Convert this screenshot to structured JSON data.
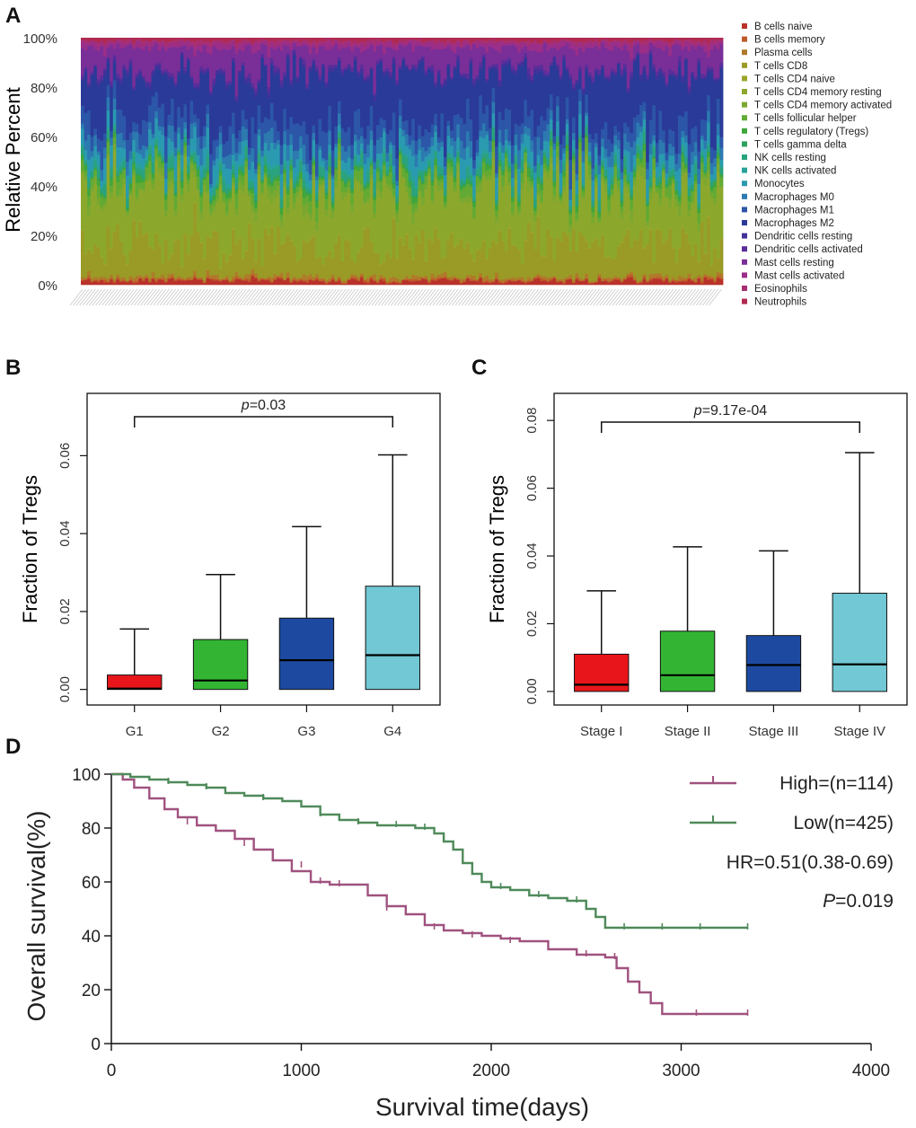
{
  "panels": {
    "a": {
      "letter": "A"
    },
    "b": {
      "letter": "B"
    },
    "c": {
      "letter": "C"
    },
    "d": {
      "letter": "D"
    }
  },
  "colors": {
    "high": "#a0527f",
    "low": "#4f8a5a",
    "g1": "#e8161b",
    "g2": "#33b533",
    "g3": "#1d4aa0",
    "g4": "#72c8d4"
  },
  "chart_data": [
    {
      "type": "bar",
      "stacked": true,
      "ylabel": "Relative Percent",
      "yticks": [
        "0%",
        "20%",
        "40%",
        "60%",
        "80%",
        "100%"
      ],
      "ylim": [
        0,
        100
      ],
      "sample_count": 200,
      "legend_position": "right",
      "series": [
        {
          "name": "B cells naive",
          "color": "#b8322a",
          "mean": 1.5
        },
        {
          "name": "B cells memory",
          "color": "#bf5a2a",
          "mean": 0.5
        },
        {
          "name": "Plasma cells",
          "color": "#b07a2a",
          "mean": 1.0
        },
        {
          "name": "T cells CD8",
          "color": "#9a9a26",
          "mean": 12.0
        },
        {
          "name": "T cells CD4 naive",
          "color": "#9aa62a",
          "mean": 0.4
        },
        {
          "name": "T cells CD4 memory resting",
          "color": "#8ca82c",
          "mean": 20.0
        },
        {
          "name": "T cells CD4 memory activated",
          "color": "#7aa830",
          "mean": 2.0
        },
        {
          "name": "T cells follicular helper",
          "color": "#62aa34",
          "mean": 3.0
        },
        {
          "name": "T cells regulatory (Tregs)",
          "color": "#3fa63c",
          "mean": 1.5
        },
        {
          "name": "T cells gamma delta",
          "color": "#2fa060",
          "mean": 0.5
        },
        {
          "name": "NK cells resting",
          "color": "#2aa27e",
          "mean": 2.5
        },
        {
          "name": "NK cells activated",
          "color": "#28a29a",
          "mean": 1.0
        },
        {
          "name": "Monocytes",
          "color": "#2a9ab0",
          "mean": 5.0
        },
        {
          "name": "Macrophages M0",
          "color": "#2c7ab0",
          "mean": 4.0
        },
        {
          "name": "Macrophages M1",
          "color": "#2c56a8",
          "mean": 7.0
        },
        {
          "name": "Macrophages M2",
          "color": "#2a3a98",
          "mean": 18.0
        },
        {
          "name": "Dendritic cells resting",
          "color": "#40329a",
          "mean": 1.0
        },
        {
          "name": "Dendritic cells activated",
          "color": "#5a2e9a",
          "mean": 1.0
        },
        {
          "name": "Mast cells resting",
          "color": "#7a2e98",
          "mean": 8.0
        },
        {
          "name": "Mast cells activated",
          "color": "#9a2e88",
          "mean": 2.0
        },
        {
          "name": "Eosinophils",
          "color": "#a82e70",
          "mean": 1.0
        },
        {
          "name": "Neutrophils",
          "color": "#b02a50",
          "mean": 1.0
        }
      ]
    },
    {
      "type": "box",
      "ylabel": "Fraction of Tregs",
      "yticks": [
        "0.00",
        "0.02",
        "0.04",
        "0.06"
      ],
      "ylim": [
        -0.004,
        0.076
      ],
      "categories": [
        "G1",
        "G2",
        "G3",
        "G4"
      ],
      "boxes": [
        {
          "label": "G1",
          "whisker_low": 0.0,
          "q1": 0.0,
          "median": 0.0002,
          "q3": 0.0037,
          "whisker_high": 0.0155,
          "color": "#e8161b"
        },
        {
          "label": "G2",
          "whisker_low": 0.0,
          "q1": 0.0,
          "median": 0.0023,
          "q3": 0.0128,
          "whisker_high": 0.0295,
          "color": "#33b533"
        },
        {
          "label": "G3",
          "whisker_low": 0.0,
          "q1": 0.0,
          "median": 0.0075,
          "q3": 0.0183,
          "whisker_high": 0.0418,
          "color": "#1d4aa0"
        },
        {
          "label": "G4",
          "whisker_low": 0.0,
          "q1": 0.0,
          "median": 0.0088,
          "q3": 0.0265,
          "whisker_high": 0.0602,
          "color": "#72c8d4"
        }
      ],
      "annotation": {
        "p_label": "p",
        "p_value": "=0.03",
        "from": "G1",
        "to": "G4",
        "y": 0.07
      }
    },
    {
      "type": "box",
      "ylabel": "Fraction of Tregs",
      "yticks": [
        "0.00",
        "0.02",
        "0.04",
        "0.06",
        "0.08"
      ],
      "ylim": [
        -0.004,
        0.088
      ],
      "categories": [
        "Stage I",
        "Stage II",
        "Stage III",
        "Stage IV"
      ],
      "boxes": [
        {
          "label": "Stage I",
          "whisker_low": 0.0,
          "q1": 0.0,
          "median": 0.002,
          "q3": 0.011,
          "whisker_high": 0.0297,
          "color": "#e8161b"
        },
        {
          "label": "Stage II",
          "whisker_low": 0.0,
          "q1": 0.0,
          "median": 0.0048,
          "q3": 0.0178,
          "whisker_high": 0.0427,
          "color": "#33b533"
        },
        {
          "label": "Stage III",
          "whisker_low": 0.0,
          "q1": 0.0,
          "median": 0.0078,
          "q3": 0.0165,
          "whisker_high": 0.0415,
          "color": "#1d4aa0"
        },
        {
          "label": "Stage IV",
          "whisker_low": 0.0,
          "q1": 0.0,
          "median": 0.008,
          "q3": 0.029,
          "whisker_high": 0.0705,
          "color": "#72c8d4"
        }
      ],
      "annotation": {
        "p_label": "p",
        "p_value": "=9.17e-04",
        "from": "Stage I",
        "to": "Stage IV",
        "y": 0.0795
      }
    },
    {
      "type": "line",
      "subtype": "kaplan-meier",
      "xlabel": "Survival time(days)",
      "ylabel": "Overall survival(%)",
      "xlim": [
        0,
        4000
      ],
      "ylim": [
        0,
        100
      ],
      "xticks": [
        0,
        1000,
        2000,
        3000,
        4000
      ],
      "yticks": [
        0,
        20,
        40,
        60,
        80,
        100
      ],
      "legend_position": "top-right",
      "series": [
        {
          "name": "High=(n=114)",
          "color": "#a0527f",
          "x": [
            0,
            60,
            120,
            200,
            280,
            350,
            450,
            550,
            650,
            750,
            850,
            950,
            1050,
            1150,
            1250,
            1350,
            1450,
            1550,
            1650,
            1750,
            1850,
            1950,
            2050,
            2150,
            2300,
            2450,
            2600,
            2660,
            2720,
            2780,
            2840,
            2900,
            3000,
            3100,
            3200,
            3350
          ],
          "y": [
            100,
            98,
            95,
            91,
            87,
            84,
            81,
            79,
            76,
            72,
            68,
            64,
            60,
            59,
            59,
            55,
            51,
            48,
            44,
            42,
            41,
            40,
            39,
            38,
            35,
            33,
            32,
            28,
            23,
            19,
            15,
            11,
            11,
            11,
            11,
            11
          ]
        },
        {
          "name": "Low(n=425)",
          "color": "#4f8a5a",
          "x": [
            0,
            100,
            200,
            300,
            400,
            500,
            600,
            700,
            800,
            900,
            1000,
            1100,
            1200,
            1300,
            1400,
            1500,
            1600,
            1700,
            1750,
            1800,
            1850,
            1900,
            1950,
            2000,
            2100,
            2200,
            2300,
            2400,
            2500,
            2550,
            2600,
            2700,
            2800,
            3000,
            3200,
            3350
          ],
          "y": [
            100,
            99,
            98,
            97,
            96,
            95,
            93,
            92,
            91,
            90,
            88,
            85,
            83,
            82,
            81,
            81,
            80,
            78,
            75,
            72,
            67,
            63,
            60,
            58,
            57,
            55,
            54,
            53,
            50,
            47,
            43,
            43,
            43,
            43,
            43,
            43
          ]
        }
      ],
      "censor_marks": {
        "High=(n=114)": [
          [
            400,
            82
          ],
          [
            700,
            74
          ],
          [
            1000,
            66
          ],
          [
            1100,
            60
          ],
          [
            1200,
            59
          ],
          [
            1450,
            50
          ],
          [
            1700,
            43
          ],
          [
            1900,
            40
          ],
          [
            2100,
            38
          ],
          [
            2500,
            33
          ],
          [
            2650,
            32
          ],
          [
            3080,
            11
          ],
          [
            3350,
            11
          ]
        ],
        "Low(n=425)": [
          [
            300,
            97
          ],
          [
            500,
            95
          ],
          [
            800,
            91
          ],
          [
            1100,
            85
          ],
          [
            1300,
            82
          ],
          [
            1500,
            81
          ],
          [
            1650,
            80
          ],
          [
            2050,
            58
          ],
          [
            2250,
            55
          ],
          [
            2450,
            53
          ],
          [
            2700,
            43
          ],
          [
            2900,
            43
          ],
          [
            3100,
            43
          ],
          [
            3350,
            43
          ]
        ]
      },
      "annotations": {
        "hr_text": "HR=0.51(0.38-0.69)",
        "p_label": "P",
        "p_value": "=0.019"
      }
    }
  ]
}
